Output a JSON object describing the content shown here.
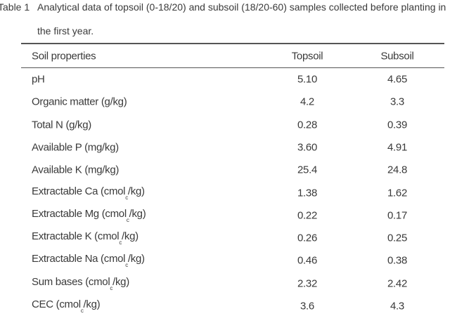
{
  "caption": {
    "label": "Table 1",
    "text": "Analytical data of topsoil (0-18/20) and subsoil (18/20-60) samples collected before planting in the first year."
  },
  "table": {
    "columns": [
      "Soil properties",
      "Topsoil",
      "Subsoil"
    ],
    "rows": [
      [
        [
          "pH"
        ],
        "5.10",
        "4.65"
      ],
      [
        [
          "Organic matter (g/kg)"
        ],
        "4.2",
        "3.3"
      ],
      [
        [
          "Total N (g/kg)"
        ],
        "0.28",
        "0.39"
      ],
      [
        [
          "Available P (mg/kg)"
        ],
        "3.60",
        "4.91"
      ],
      [
        [
          "Available K (mg/kg)"
        ],
        "25.4",
        "24.8"
      ],
      [
        [
          "Extractable Ca (cmol",
          "c",
          "/kg)"
        ],
        "1.38",
        "1.62"
      ],
      [
        [
          "Extractable Mg (cmol",
          "c",
          "/kg)"
        ],
        "0.22",
        "0.17"
      ],
      [
        [
          "Extractable K (cmol",
          "c",
          "/kg)"
        ],
        "0.26",
        "0.25"
      ],
      [
        [
          "Extractable Na (cmol",
          "c",
          "/kg)"
        ],
        "0.46",
        "0.38"
      ],
      [
        [
          "Sum bases (cmol",
          "c",
          "/kg)"
        ],
        "2.32",
        "2.42"
      ],
      [
        [
          "CEC (cmol",
          "c",
          "/kg)"
        ],
        "3.6",
        "4.3"
      ]
    ]
  }
}
